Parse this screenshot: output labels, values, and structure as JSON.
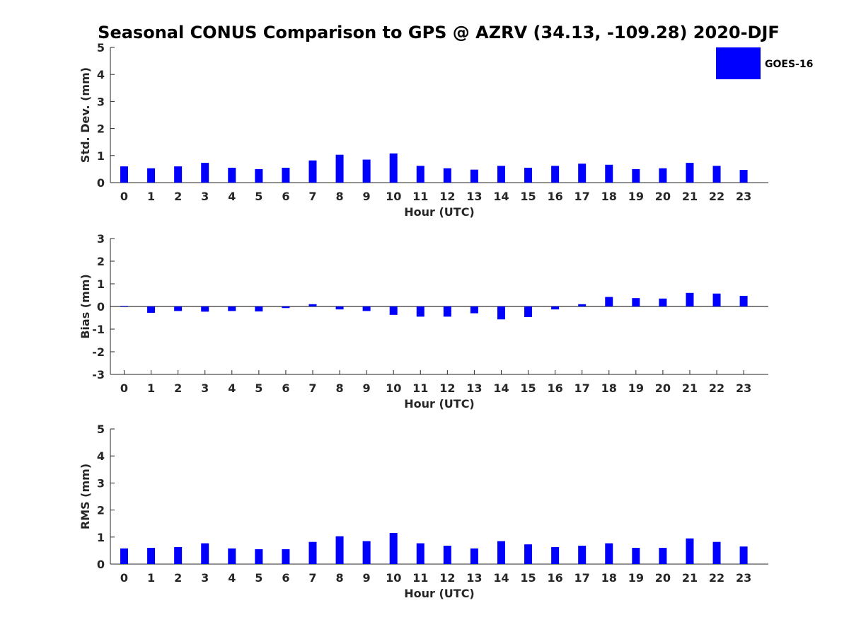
{
  "title": "Seasonal CONUS Comparison to GPS @ AZRV (34.13, -109.28) 2020-DJF",
  "legend": {
    "label": "GOES-16",
    "color": "#0000ff"
  },
  "chart_data": [
    {
      "type": "bar",
      "ylabel": "Std. Dev. (mm)",
      "xlabel": "Hour (UTC)",
      "ylim": [
        0,
        5
      ],
      "yticks": [
        0,
        1,
        2,
        3,
        4,
        5
      ],
      "categories": [
        "0",
        "1",
        "2",
        "3",
        "4",
        "5",
        "6",
        "7",
        "8",
        "9",
        "10",
        "11",
        "12",
        "13",
        "14",
        "15",
        "16",
        "17",
        "18",
        "19",
        "20",
        "21",
        "22",
        "23"
      ],
      "series": [
        {
          "name": "GOES-16",
          "values": [
            0.6,
            0.53,
            0.6,
            0.73,
            0.55,
            0.5,
            0.55,
            0.82,
            1.03,
            0.85,
            1.08,
            0.62,
            0.53,
            0.48,
            0.62,
            0.55,
            0.62,
            0.7,
            0.66,
            0.5,
            0.53,
            0.73,
            0.62,
            0.47
          ]
        }
      ]
    },
    {
      "type": "bar",
      "ylabel": "Bias (mm)",
      "xlabel": "Hour (UTC)",
      "ylim": [
        -3,
        3
      ],
      "yticks": [
        -3,
        -2,
        -1,
        0,
        1,
        2,
        3
      ],
      "categories": [
        "0",
        "1",
        "2",
        "3",
        "4",
        "5",
        "6",
        "7",
        "8",
        "9",
        "10",
        "11",
        "12",
        "13",
        "14",
        "15",
        "16",
        "17",
        "18",
        "19",
        "20",
        "21",
        "22",
        "23"
      ],
      "series": [
        {
          "name": "GOES-16",
          "values": [
            0.03,
            -0.28,
            -0.2,
            -0.23,
            -0.2,
            -0.22,
            -0.07,
            0.1,
            -0.13,
            -0.2,
            -0.37,
            -0.45,
            -0.45,
            -0.3,
            -0.57,
            -0.47,
            -0.13,
            0.1,
            0.42,
            0.37,
            0.35,
            0.6,
            0.57,
            0.47
          ]
        }
      ]
    },
    {
      "type": "bar",
      "ylabel": "RMS (mm)",
      "xlabel": "Hour (UTC)",
      "ylim": [
        0,
        5
      ],
      "yticks": [
        0,
        1,
        2,
        3,
        4,
        5
      ],
      "categories": [
        "0",
        "1",
        "2",
        "3",
        "4",
        "5",
        "6",
        "7",
        "8",
        "9",
        "10",
        "11",
        "12",
        "13",
        "14",
        "15",
        "16",
        "17",
        "18",
        "19",
        "20",
        "21",
        "22",
        "23"
      ],
      "series": [
        {
          "name": "GOES-16",
          "values": [
            0.58,
            0.6,
            0.63,
            0.77,
            0.58,
            0.55,
            0.55,
            0.82,
            1.03,
            0.85,
            1.15,
            0.77,
            0.68,
            0.58,
            0.85,
            0.73,
            0.63,
            0.68,
            0.77,
            0.6,
            0.6,
            0.95,
            0.82,
            0.65
          ]
        }
      ]
    }
  ]
}
